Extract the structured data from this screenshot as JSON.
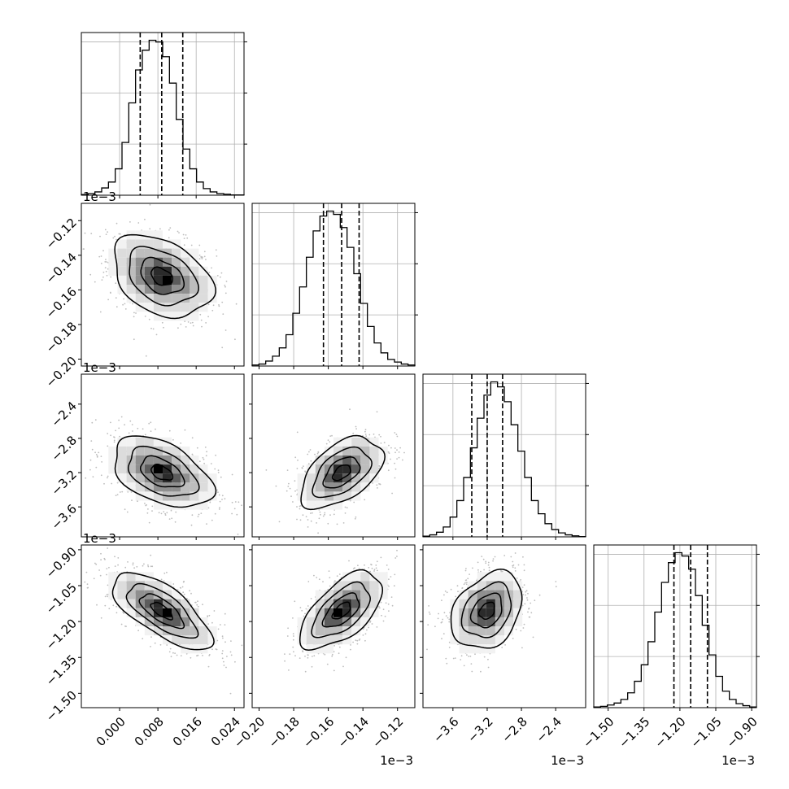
{
  "chart_data": {
    "type": "corner",
    "title": "",
    "grid": true,
    "parameters": [
      {
        "index": 0,
        "range": [
          -0.008,
          0.026
        ],
        "ticks": [
          "0.000",
          "0.008",
          "0.016",
          "0.024"
        ],
        "tick_values": [
          0.0,
          0.008,
          0.016,
          0.024
        ],
        "offset": "",
        "quantiles": [
          0.0043,
          0.0088,
          0.0132
        ],
        "mean": 0.0088,
        "sd": 0.0045
      },
      {
        "index": 1,
        "range": [
          -0.204,
          -0.11
        ],
        "ticks": [
          "−0.20",
          "−0.18",
          "−0.16",
          "−0.14",
          "−0.12"
        ],
        "tick_values": [
          -0.2,
          -0.18,
          -0.16,
          -0.14,
          -0.12
        ],
        "offset": "1e−3",
        "quantiles": [
          -0.1628,
          -0.1523,
          -0.1422
        ],
        "mean": -0.1523,
        "sd": 0.0103
      },
      {
        "index": 2,
        "range": [
          -3.95,
          -2.05
        ],
        "ticks": [
          "−3.6",
          "−3.2",
          "−2.8",
          "−2.4"
        ],
        "tick_values": [
          -3.6,
          -3.2,
          -2.8,
          -2.4
        ],
        "offset": "1e−3",
        "quantiles": [
          -3.38,
          -3.2,
          -3.02
        ],
        "mean": -3.2,
        "sd": 0.18
      },
      {
        "index": 3,
        "range": [
          -1.56,
          -0.88
        ],
        "ticks": [
          "−1.50",
          "−1.35",
          "−1.20",
          "−1.05",
          "−0.90"
        ],
        "tick_values": [
          -1.5,
          -1.35,
          -1.2,
          -1.05,
          -0.9
        ],
        "offset": "1e−3",
        "quantiles": [
          -1.225,
          -1.155,
          -1.085
        ],
        "mean": -1.155,
        "sd": 0.07
      }
    ],
    "histograms": [
      {
        "param": 0,
        "bins": 24,
        "counts": [
          2,
          5,
          10,
          22,
          40,
          80,
          160,
          280,
          380,
          440,
          470,
          465,
          420,
          340,
          230,
          140,
          80,
          40,
          20,
          10,
          5,
          3,
          1,
          1
        ]
      },
      {
        "param": 1,
        "bins": 24,
        "counts": [
          3,
          6,
          15,
          30,
          55,
          95,
          160,
          240,
          330,
          410,
          455,
          470,
          460,
          420,
          360,
          280,
          190,
          120,
          70,
          40,
          20,
          12,
          6,
          3
        ]
      },
      {
        "param": 2,
        "bins": 24,
        "counts": [
          2,
          6,
          14,
          30,
          60,
          110,
          180,
          270,
          360,
          430,
          470,
          455,
          410,
          340,
          260,
          180,
          110,
          70,
          40,
          22,
          12,
          6,
          3,
          1
        ]
      },
      {
        "param": 3,
        "bins": 24,
        "counts": [
          2,
          4,
          8,
          14,
          25,
          45,
          80,
          130,
          200,
          290,
          380,
          440,
          470,
          460,
          420,
          340,
          250,
          160,
          95,
          50,
          25,
          12,
          6,
          2
        ]
      }
    ],
    "correlations": [
      {
        "row": 1,
        "col": 0,
        "rho": -0.35
      },
      {
        "row": 2,
        "col": 0,
        "rho": -0.45
      },
      {
        "row": 2,
        "col": 1,
        "rho": 0.5
      },
      {
        "row": 3,
        "col": 0,
        "rho": -0.7
      },
      {
        "row": 3,
        "col": 1,
        "rho": 0.6
      },
      {
        "row": 3,
        "col": 2,
        "rho": 0.3
      }
    ]
  }
}
